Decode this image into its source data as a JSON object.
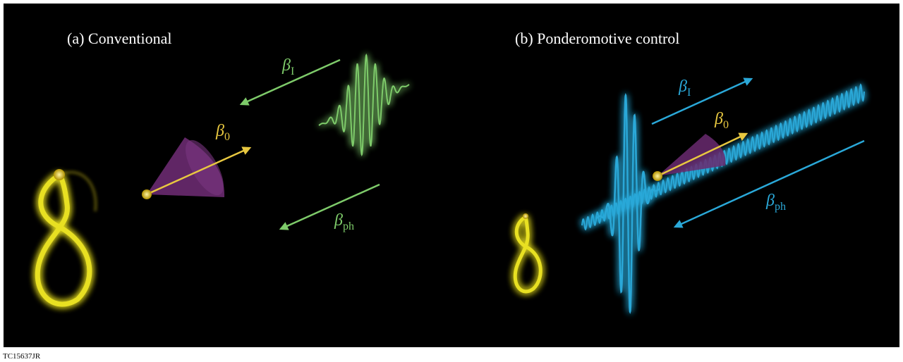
{
  "panels": [
    {
      "title": "(a) Conventional",
      "labels": {
        "beta_I": {
          "symbol": "β",
          "subscript": "I"
        },
        "beta_0": {
          "symbol": "β",
          "subscript": "0"
        },
        "beta_ph": {
          "symbol": "β",
          "subscript": "ph"
        }
      }
    },
    {
      "title": "(b) Ponderomotive control",
      "labels": {
        "beta_I": {
          "symbol": "β",
          "subscript": "I"
        },
        "beta_0": {
          "symbol": "β",
          "subscript": "0"
        },
        "beta_ph": {
          "symbol": "β",
          "subscript": "ph"
        }
      }
    }
  ],
  "footer": {
    "code": "TC15637JR"
  }
}
